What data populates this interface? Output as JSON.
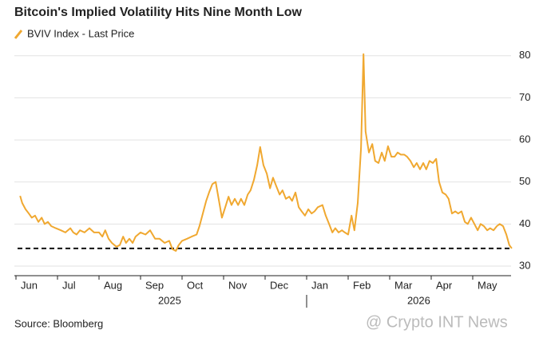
{
  "chart_data": {
    "type": "line",
    "title": "Bitcoin's Implied Volatility Hits Nine Month Low",
    "source": "Source: Bloomberg",
    "watermark": "@ Crypto INT News",
    "year_labels": [
      "2025",
      "2026"
    ],
    "series": [
      {
        "name": "BVIV Index - Last Price",
        "color": "#f0a830",
        "x": [
          0.1,
          0.15,
          0.23,
          0.31,
          0.38,
          0.46,
          0.54,
          0.62,
          0.69,
          0.77,
          0.85,
          0.96,
          1.08,
          1.19,
          1.31,
          1.38,
          1.46,
          1.54,
          1.65,
          1.77,
          1.88,
          2.0,
          2.08,
          2.15,
          2.23,
          2.31,
          2.42,
          2.5,
          2.58,
          2.65,
          2.73,
          2.81,
          2.88,
          3.0,
          3.12,
          3.23,
          3.35,
          3.46,
          3.58,
          3.69,
          3.77,
          3.85,
          3.92,
          4.0,
          4.12,
          4.23,
          4.35,
          4.42,
          4.5,
          4.58,
          4.65,
          4.73,
          4.81,
          4.88,
          4.96,
          5.04,
          5.12,
          5.19,
          5.27,
          5.35,
          5.42,
          5.5,
          5.58,
          5.65,
          5.73,
          5.81,
          5.88,
          5.96,
          6.04,
          6.12,
          6.19,
          6.27,
          6.35,
          6.42,
          6.5,
          6.58,
          6.65,
          6.73,
          6.81,
          6.88,
          6.96,
          7.04,
          7.12,
          7.19,
          7.27,
          7.38,
          7.46,
          7.54,
          7.62,
          7.69,
          7.77,
          7.85,
          7.92,
          8.0,
          8.08,
          8.15,
          8.23,
          8.31,
          8.37,
          8.42,
          8.5,
          8.58,
          8.65,
          8.73,
          8.81,
          8.88,
          8.96,
          9.04,
          9.12,
          9.19,
          9.27,
          9.35,
          9.42,
          9.5,
          9.58,
          9.65,
          9.73,
          9.81,
          9.88,
          9.96,
          10.04,
          10.12,
          10.19,
          10.27,
          10.35,
          10.42,
          10.5,
          10.58,
          10.65,
          10.73,
          10.81,
          10.88,
          10.96,
          11.04,
          11.12,
          11.19,
          11.27,
          11.35,
          11.42,
          11.5,
          11.58,
          11.65,
          11.73,
          11.81,
          11.88,
          11.94
        ],
        "values": [
          46.7,
          45,
          43.5,
          42.5,
          41.5,
          42,
          40.5,
          41.5,
          40,
          40.5,
          39.5,
          39,
          38.5,
          38,
          39,
          38,
          37.5,
          38.5,
          38,
          39,
          38,
          38,
          37,
          38.5,
          36.5,
          35.5,
          34.6,
          35,
          37,
          35.5,
          36.5,
          35.5,
          37,
          38,
          37.5,
          38.5,
          36.5,
          36.5,
          35.5,
          36,
          34,
          33.6,
          35,
          36,
          36.5,
          37,
          37.5,
          39.5,
          42.5,
          45.5,
          47.5,
          49.5,
          50,
          46,
          41.5,
          44,
          46.5,
          44.5,
          46,
          44.5,
          46,
          44.5,
          47,
          48,
          50.5,
          54,
          58.3,
          54,
          52,
          48.5,
          51,
          49,
          47,
          48,
          46,
          46.5,
          45.5,
          47.5,
          44,
          43,
          42,
          43.5,
          42.5,
          43,
          44,
          44.5,
          42,
          40,
          38,
          39,
          38,
          38.5,
          38,
          37.5,
          42,
          38.5,
          45,
          58,
          80.4,
          62,
          57,
          59,
          55,
          54.5,
          57,
          55,
          58.5,
          56,
          56,
          57,
          56.5,
          56.5,
          56,
          55,
          53.5,
          54.5,
          53,
          54.5,
          53,
          55,
          54.5,
          55.5,
          50,
          47.5,
          47,
          46,
          42.5,
          43,
          42.5,
          43,
          40.5,
          40,
          41.5,
          40,
          38.5,
          40,
          39.5,
          38.5,
          39,
          38.5,
          39.5,
          40,
          39.5,
          37.5,
          35,
          34.2
        ]
      }
    ],
    "reference_line": 34.2,
    "xlim": [
      0,
      12
    ],
    "xticks": [
      {
        "value": 0,
        "label": "Jun"
      },
      {
        "value": 1,
        "label": "Jul"
      },
      {
        "value": 2,
        "label": "Aug"
      },
      {
        "value": 3,
        "label": "Sep"
      },
      {
        "value": 4,
        "label": "Oct"
      },
      {
        "value": 5,
        "label": "Nov"
      },
      {
        "value": 6,
        "label": "Dec"
      },
      {
        "value": 7,
        "label": "Jan"
      },
      {
        "value": 8,
        "label": "Feb"
      },
      {
        "value": 9,
        "label": "Mar"
      },
      {
        "value": 10,
        "label": "Apr"
      },
      {
        "value": 11,
        "label": "May"
      }
    ],
    "ylim": [
      28,
      83
    ],
    "yticks": [
      30,
      40,
      50,
      60,
      70,
      80
    ],
    "grid": true
  }
}
